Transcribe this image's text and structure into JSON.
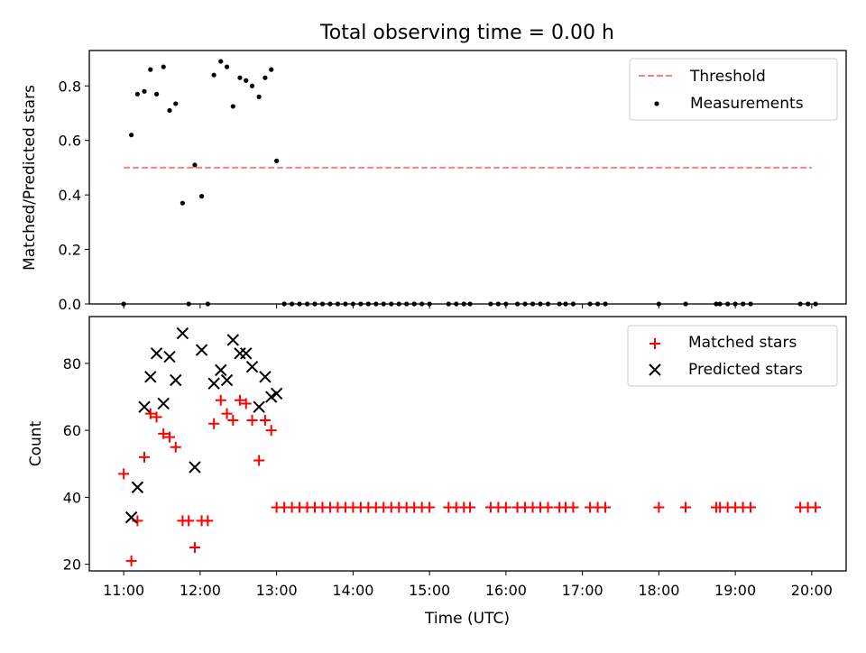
{
  "chart_data": [
    {
      "type": "scatter",
      "title": "Total observing time = 0.00 h",
      "xlabel": "",
      "ylabel": "Matched/Predicted stars",
      "ylim": [
        0,
        0.93
      ],
      "yticks": [
        "0.0",
        "0.2",
        "0.4",
        "0.6",
        "0.8"
      ],
      "ytick_values": [
        0,
        0.2,
        0.4,
        0.6,
        0.8
      ],
      "legend_position": "top-right",
      "threshold": {
        "name": "Threshold",
        "value": 0.5,
        "x_start": 11.0,
        "x_end": 20.0,
        "color": "#ff7f7f"
      },
      "series": [
        {
          "name": "Measurements",
          "color": "#000000",
          "x": [
            11.0,
            11.1,
            11.18,
            11.27,
            11.35,
            11.43,
            11.52,
            11.6,
            11.68,
            11.77,
            11.85,
            11.93,
            12.02,
            12.1,
            12.18,
            12.27,
            12.35,
            12.43,
            12.52,
            12.6,
            12.68,
            12.77,
            12.85,
            12.93,
            13.0,
            13.1,
            13.2,
            13.3,
            13.4,
            13.5,
            13.6,
            13.7,
            13.8,
            13.9,
            14.0,
            14.1,
            14.2,
            14.3,
            14.4,
            14.5,
            14.6,
            14.7,
            14.8,
            14.9,
            15.0,
            15.25,
            15.35,
            15.45,
            15.53,
            15.8,
            15.9,
            16.0,
            16.15,
            16.25,
            16.35,
            16.45,
            16.55,
            16.7,
            16.78,
            16.88,
            17.1,
            17.2,
            17.3,
            18.0,
            18.35,
            18.75,
            18.8,
            18.9,
            19.0,
            19.1,
            19.2,
            19.85,
            19.95,
            20.05
          ],
          "y": [
            0,
            0.62,
            0.77,
            0.78,
            0.86,
            0.77,
            0.87,
            0.71,
            0.735,
            0.37,
            0,
            0.51,
            0.395,
            0,
            0.84,
            0.89,
            0.87,
            0.725,
            0.83,
            0.82,
            0.8,
            0.76,
            0.83,
            0.86,
            0.525,
            0,
            0,
            0,
            0,
            0,
            0,
            0,
            0,
            0,
            0,
            0,
            0,
            0,
            0,
            0,
            0,
            0,
            0,
            0,
            0,
            0,
            0,
            0,
            0,
            0,
            0,
            0,
            0,
            0,
            0,
            0,
            0,
            0,
            0,
            0,
            0,
            0,
            0,
            0,
            0,
            0,
            0,
            0,
            0,
            0,
            0,
            0,
            0,
            0
          ]
        }
      ]
    },
    {
      "type": "scatter",
      "title": "",
      "xlabel": "Time (UTC)",
      "ylabel": "Count",
      "xlim": [
        10.55,
        20.45
      ],
      "ylim": [
        18,
        94
      ],
      "xtick_values": [
        11,
        12,
        13,
        14,
        15,
        16,
        17,
        18,
        19,
        20
      ],
      "xticks": [
        "11:00",
        "12:00",
        "13:00",
        "14:00",
        "15:00",
        "16:00",
        "17:00",
        "18:00",
        "19:00",
        "20:00"
      ],
      "ytick_values": [
        20,
        40,
        60,
        80
      ],
      "yticks": [
        "20",
        "40",
        "60",
        "80"
      ],
      "legend_position": "top-right",
      "series": [
        {
          "name": "Matched stars",
          "marker": "+",
          "color": "#ff0000",
          "x": [
            11.0,
            11.1,
            11.18,
            11.27,
            11.35,
            11.43,
            11.52,
            11.6,
            11.68,
            11.77,
            11.85,
            11.93,
            12.02,
            12.1,
            12.18,
            12.27,
            12.35,
            12.43,
            12.52,
            12.6,
            12.68,
            12.77,
            12.85,
            12.93,
            13.0,
            13.1,
            13.2,
            13.3,
            13.4,
            13.5,
            13.6,
            13.7,
            13.8,
            13.9,
            14.0,
            14.1,
            14.2,
            14.3,
            14.4,
            14.5,
            14.6,
            14.7,
            14.8,
            14.9,
            15.0,
            15.25,
            15.35,
            15.45,
            15.53,
            15.8,
            15.9,
            16.0,
            16.15,
            16.25,
            16.35,
            16.45,
            16.55,
            16.7,
            16.78,
            16.88,
            17.1,
            17.2,
            17.3,
            18.0,
            18.35,
            18.75,
            18.8,
            18.9,
            19.0,
            19.1,
            19.2,
            19.85,
            19.95,
            20.05
          ],
          "y": [
            47,
            21,
            33,
            52,
            65,
            64,
            59,
            58,
            55,
            33,
            33,
            25,
            33,
            33,
            62,
            69,
            65,
            63,
            69,
            68,
            63,
            51,
            63,
            60,
            37,
            37,
            37,
            37,
            37,
            37,
            37,
            37,
            37,
            37,
            37,
            37,
            37,
            37,
            37,
            37,
            37,
            37,
            37,
            37,
            37,
            37,
            37,
            37,
            37,
            37,
            37,
            37,
            37,
            37,
            37,
            37,
            37,
            37,
            37,
            37,
            37,
            37,
            37,
            37,
            37,
            37,
            37,
            37,
            37,
            37,
            37,
            37,
            37,
            37
          ]
        },
        {
          "name": "Predicted stars",
          "marker": "x",
          "color": "#000000",
          "x": [
            11.1,
            11.18,
            11.27,
            11.35,
            11.43,
            11.52,
            11.6,
            11.68,
            11.77,
            11.93,
            12.02,
            12.18,
            12.27,
            12.35,
            12.43,
            12.52,
            12.6,
            12.68,
            12.77,
            12.85,
            12.93,
            13.0
          ],
          "y": [
            34,
            43,
            67,
            76,
            83,
            68,
            82,
            75,
            89,
            49,
            84,
            74,
            78,
            75,
            87,
            83,
            83,
            79,
            67,
            76,
            70,
            71
          ]
        }
      ]
    }
  ]
}
